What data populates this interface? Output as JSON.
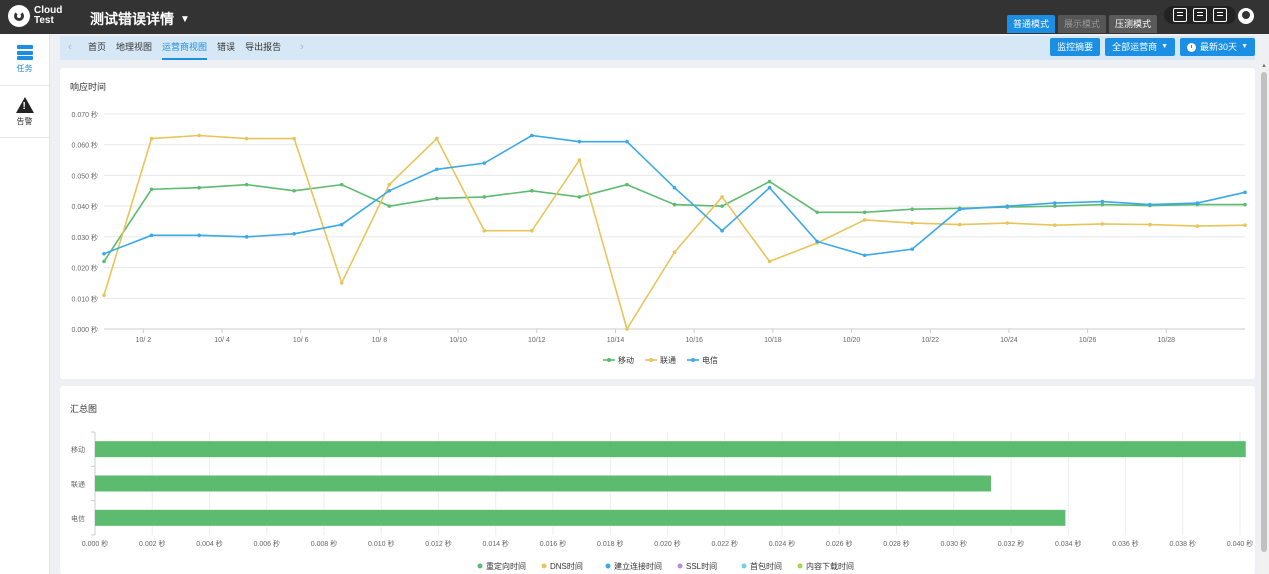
{
  "app": {
    "logo_text": "Cloud Test",
    "title": "测试错误详情",
    "modes": [
      "普通模式",
      "展示模式",
      "压测模式"
    ]
  },
  "sidebar": {
    "items": [
      {
        "label": "任务",
        "icon": "task-list-icon",
        "active": true
      },
      {
        "label": "告警",
        "icon": "alert-icon",
        "active": false
      }
    ]
  },
  "subnav": {
    "tabs": [
      "首页",
      "地理视图",
      "运营商视图",
      "错误",
      "导出报告"
    ],
    "active_tab": 2,
    "monitor_summary": "监控摘要",
    "all_carriers": "全部运营商",
    "time_range": "最新30天"
  },
  "colors": {
    "mobile": "#5cbb6f",
    "unicom": "#e8c55a",
    "telecom": "#3ba8e8",
    "accent": "#1a8fe3"
  },
  "response_panel": {
    "title": "响应时间"
  },
  "summary_panel": {
    "title": "汇总图"
  },
  "chart_data": [
    {
      "type": "line",
      "title": "响应时间",
      "y_ticks": [
        "0.000 秒",
        "0.010 秒",
        "0.020 秒",
        "0.030 秒",
        "0.040 秒",
        "0.050 秒",
        "0.060 秒",
        "0.070 秒"
      ],
      "x_ticks": [
        "10/ 2",
        "10/ 4",
        "10/ 6",
        "10/ 8",
        "10/10",
        "10/12",
        "10/14",
        "10/16",
        "10/18",
        "10/20",
        "10/22",
        "10/24",
        "10/26",
        "10/28"
      ],
      "ylim": [
        0,
        0.07
      ],
      "x_start": "10/1",
      "x_end": "10/30",
      "grid": true,
      "legend": "bottom",
      "series": [
        {
          "name": "移动",
          "color": "#5cbb6f",
          "values": [
            0.022,
            0.0455,
            0.046,
            0.047,
            0.045,
            0.047,
            0.04,
            0.0425,
            0.043,
            0.045,
            0.043,
            0.047,
            0.0405,
            0.04,
            0.048,
            0.038,
            0.038,
            0.039,
            0.0393,
            0.0397,
            0.04,
            0.0405,
            0.0402,
            0.0405,
            0.0405
          ]
        },
        {
          "name": "联通",
          "color": "#e8c55a",
          "values": [
            0.011,
            0.062,
            0.063,
            0.062,
            0.062,
            0.015,
            0.047,
            0.062,
            0.032,
            0.032,
            0.055,
            0.0,
            0.025,
            0.043,
            0.022,
            0.028,
            0.0355,
            0.0345,
            0.034,
            0.0345,
            0.0338,
            0.0342,
            0.034,
            0.0335,
            0.0338
          ]
        },
        {
          "name": "电信",
          "color": "#3ba8e8",
          "values": [
            0.0245,
            0.0305,
            0.0305,
            0.03,
            0.031,
            0.034,
            0.045,
            0.052,
            0.054,
            0.063,
            0.061,
            0.061,
            0.046,
            0.032,
            0.046,
            0.0285,
            0.024,
            0.026,
            0.039,
            0.04,
            0.041,
            0.0415,
            0.0405,
            0.041,
            0.0445
          ]
        }
      ]
    },
    {
      "type": "bar",
      "orientation": "horizontal",
      "title": "汇总图",
      "categories": [
        "移动",
        "联通",
        "电信"
      ],
      "values": [
        0.0402,
        0.0313,
        0.0339
      ],
      "x_ticks": [
        "0.000 秒",
        "0.002 秒",
        "0.004 秒",
        "0.006 秒",
        "0.008 秒",
        "0.010 秒",
        "0.012 秒",
        "0.014 秒",
        "0.016 秒",
        "0.018 秒",
        "0.020 秒",
        "0.022 秒",
        "0.024 秒",
        "0.026 秒",
        "0.028 秒",
        "0.030 秒",
        "0.032 秒",
        "0.034 秒",
        "0.036 秒",
        "0.038 秒",
        "0.040 秒"
      ],
      "xlim": [
        0,
        0.04
      ],
      "legend": "bottom",
      "legend_items": [
        {
          "name": "重定向时间",
          "color": "#5cbb6f"
        },
        {
          "name": "DNS时间",
          "color": "#e8c55a"
        },
        {
          "name": "建立连接时间",
          "color": "#3ba8e8"
        },
        {
          "name": "SSL时间",
          "color": "#b58de0"
        },
        {
          "name": "首包时间",
          "color": "#6fd3e8"
        },
        {
          "name": "内容下载时间",
          "color": "#9ed94f"
        }
      ]
    }
  ]
}
